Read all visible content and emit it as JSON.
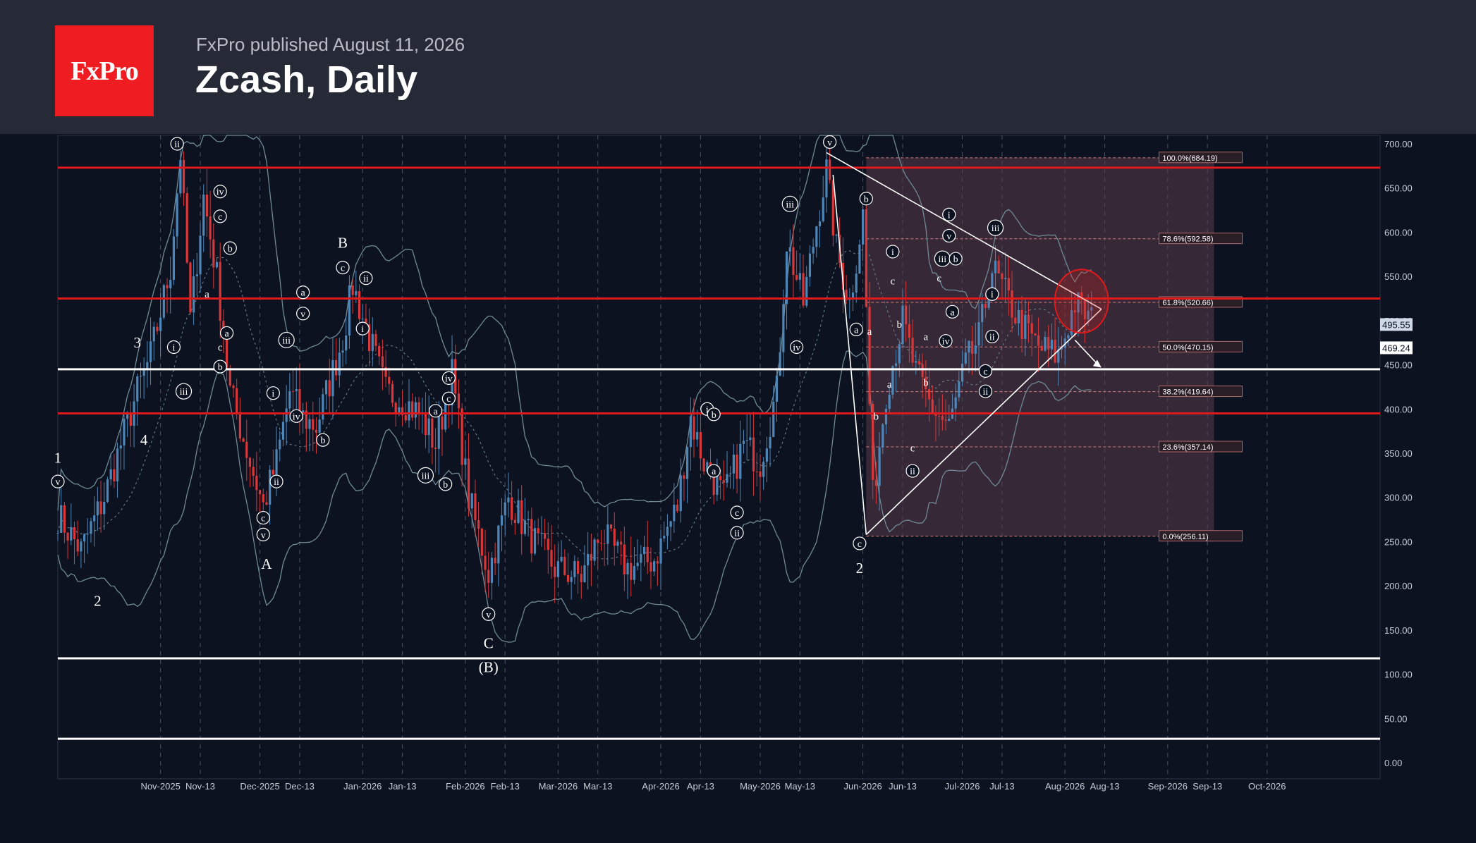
{
  "header": {
    "publisher": "FxPro published August 11, 2026",
    "title": "Zcash, Daily",
    "logo": "FxPro"
  },
  "colors": {
    "background": "#0c1220",
    "header": "#262a36",
    "logo": "#ef1c22",
    "up_candle": "#4f86b8",
    "down_candle": "#d8383a",
    "resistance": "#e0191c",
    "support": "#ffffff",
    "band": "#6f8a94",
    "fib_zone": "#5a3a48"
  },
  "chart_data": {
    "type": "candlestick",
    "ylim": [
      -20,
      720
    ],
    "y_ticks": [
      "0.00",
      "50.00",
      "100.00",
      "150.00",
      "200.00",
      "250.00",
      "300.00",
      "350.00",
      "400.00",
      "450.00",
      "500.00",
      "550.00",
      "600.00",
      "650.00",
      "700.00"
    ],
    "x_ticks": [
      "Nov-2025",
      "Nov-13",
      "Dec-2025",
      "Dec-13",
      "Jan-2026",
      "Jan-13",
      "Feb-2026",
      "Feb-13",
      "Mar-2026",
      "Mar-13",
      "Apr-2026",
      "Apr-13",
      "May-2026",
      "May-13",
      "Jun-2026",
      "Jun-13",
      "Jul-2026",
      "Jul-13",
      "Aug-2026",
      "Aug-13",
      "Sep-2026",
      "Sep-13",
      "Oct-2026"
    ],
    "horizontal_levels": [
      {
        "price": 673,
        "color": "red"
      },
      {
        "price": 525,
        "color": "red"
      },
      {
        "price": 445,
        "color": "white"
      },
      {
        "price": 395,
        "color": "red"
      },
      {
        "price": 118,
        "color": "white"
      },
      {
        "price": 27,
        "color": "white"
      }
    ],
    "fibonacci": [
      {
        "label": "100.0%(684.19)",
        "price": 684.19
      },
      {
        "label": "78.6%(592.58)",
        "price": 592.58
      },
      {
        "label": "61.8%(520.66)",
        "price": 520.66
      },
      {
        "label": "50.0%(470.15)",
        "price": 470.15
      },
      {
        "label": "38.2%(419.64)",
        "price": 419.64
      },
      {
        "label": "23.6%(357.14)",
        "price": 357.14
      },
      {
        "label": "0.0%(256.11)",
        "price": 256.11
      }
    ],
    "price_labels": [
      "495.55",
      "469.24"
    ],
    "close_path": [
      [
        "2025-10-01",
        280
      ],
      [
        "2025-10-08",
        240
      ],
      [
        "2025-10-15",
        300
      ],
      [
        "2025-10-20",
        360
      ],
      [
        "2025-10-25",
        420
      ],
      [
        "2025-10-29",
        460
      ],
      [
        "2025-11-04",
        560
      ],
      [
        "2025-11-07",
        690
      ],
      [
        "2025-11-10",
        500
      ],
      [
        "2025-11-14",
        640
      ],
      [
        "2025-11-18",
        550
      ],
      [
        "2025-11-22",
        420
      ],
      [
        "2025-11-28",
        340
      ],
      [
        "2025-12-02",
        290
      ],
      [
        "2025-12-06",
        340
      ],
      [
        "2025-12-10",
        420
      ],
      [
        "2025-12-14",
        390
      ],
      [
        "2025-12-18",
        380
      ],
      [
        "2025-12-22",
        430
      ],
      [
        "2025-12-26",
        480
      ],
      [
        "2025-12-29",
        540
      ],
      [
        "2026-01-03",
        480
      ],
      [
        "2026-01-08",
        420
      ],
      [
        "2026-01-13",
        410
      ],
      [
        "2026-01-18",
        395
      ],
      [
        "2026-01-23",
        360
      ],
      [
        "2026-01-28",
        440
      ],
      [
        "2026-02-02",
        300
      ],
      [
        "2026-02-08",
        215
      ],
      [
        "2026-02-14",
        300
      ],
      [
        "2026-02-20",
        260
      ],
      [
        "2026-02-28",
        220
      ],
      [
        "2026-03-08",
        210
      ],
      [
        "2026-03-14",
        260
      ],
      [
        "2026-03-22",
        220
      ],
      [
        "2026-03-30",
        230
      ],
      [
        "2026-04-06",
        290
      ],
      [
        "2026-04-10",
        390
      ],
      [
        "2026-04-14",
        340
      ],
      [
        "2026-04-20",
        300
      ],
      [
        "2026-04-26",
        360
      ],
      [
        "2026-05-01",
        340
      ],
      [
        "2026-05-06",
        420
      ],
      [
        "2026-05-09",
        590
      ],
      [
        "2026-05-14",
        520
      ],
      [
        "2026-05-18",
        610
      ],
      [
        "2026-05-21",
        670
      ],
      [
        "2026-05-24",
        580
      ],
      [
        "2026-05-28",
        520
      ],
      [
        "2026-06-01",
        620
      ],
      [
        "2026-06-04",
        300
      ],
      [
        "2026-06-08",
        420
      ],
      [
        "2026-06-13",
        500
      ],
      [
        "2026-06-17",
        440
      ],
      [
        "2026-06-22",
        400
      ],
      [
        "2026-06-27",
        380
      ],
      [
        "2026-07-02",
        450
      ],
      [
        "2026-07-06",
        480
      ],
      [
        "2026-07-10",
        560
      ],
      [
        "2026-07-14",
        530
      ],
      [
        "2026-07-18",
        500
      ],
      [
        "2026-07-24",
        470
      ],
      [
        "2026-07-30",
        460
      ],
      [
        "2026-08-04",
        520
      ],
      [
        "2026-08-09",
        500
      ]
    ],
    "wave_labels": [
      {
        "text": "1",
        "date": "2025-10-01",
        "price": 345
      },
      {
        "text": "v",
        "date": "2025-10-01",
        "price": 318,
        "circle": true
      },
      {
        "text": "2",
        "date": "2025-10-13",
        "price": 183
      },
      {
        "text": "3",
        "date": "2025-10-25",
        "price": 475
      },
      {
        "text": "4",
        "date": "2025-10-27",
        "price": 365
      },
      {
        "text": "ii",
        "date": "2025-11-06",
        "price": 700,
        "circle": true
      },
      {
        "text": "i",
        "date": "2025-11-05",
        "price": 470,
        "circle": true
      },
      {
        "text": "iii",
        "date": "2025-11-08",
        "price": 420,
        "circle": true
      },
      {
        "text": "iv",
        "date": "2025-11-19",
        "price": 646,
        "circle": true
      },
      {
        "text": "c",
        "date": "2025-11-19",
        "price": 618,
        "circle": true
      },
      {
        "text": "a",
        "date": "2025-11-15",
        "price": 530
      },
      {
        "text": "b",
        "date": "2025-11-22",
        "price": 582,
        "circle": true
      },
      {
        "text": "a",
        "date": "2025-11-21",
        "price": 486,
        "circle": true
      },
      {
        "text": "c",
        "date": "2025-11-19",
        "price": 470
      },
      {
        "text": "b",
        "date": "2025-11-19",
        "price": 448,
        "circle": true
      },
      {
        "text": "i",
        "date": "2025-12-05",
        "price": 418,
        "circle": true
      },
      {
        "text": "ii",
        "date": "2025-12-06",
        "price": 318,
        "circle": true
      },
      {
        "text": "c",
        "date": "2025-12-02",
        "price": 277,
        "circle": true
      },
      {
        "text": "v",
        "date": "2025-12-02",
        "price": 258,
        "circle": true
      },
      {
        "text": "A",
        "date": "2025-12-03",
        "price": 225
      },
      {
        "text": "iii",
        "date": "2025-12-09",
        "price": 478,
        "circle": true
      },
      {
        "text": "iv",
        "date": "2025-12-12",
        "price": 392,
        "circle": true
      },
      {
        "text": "a",
        "date": "2025-12-14",
        "price": 532,
        "circle": true
      },
      {
        "text": "v",
        "date": "2025-12-14",
        "price": 508,
        "circle": true
      },
      {
        "text": "b",
        "date": "2025-12-20",
        "price": 365,
        "circle": true
      },
      {
        "text": "B",
        "date": "2025-12-26",
        "price": 588
      },
      {
        "text": "c",
        "date": "2025-12-26",
        "price": 560,
        "circle": true
      },
      {
        "text": "ii",
        "date": "2026-01-02",
        "price": 548,
        "circle": true
      },
      {
        "text": "i",
        "date": "2026-01-01",
        "price": 491,
        "circle": true
      },
      {
        "text": "iv",
        "date": "2026-01-27",
        "price": 435,
        "circle": true
      },
      {
        "text": "c",
        "date": "2026-01-27",
        "price": 412,
        "circle": true
      },
      {
        "text": "a",
        "date": "2026-01-23",
        "price": 398,
        "circle": true
      },
      {
        "text": "iii",
        "date": "2026-01-20",
        "price": 325,
        "circle": true
      },
      {
        "text": "b",
        "date": "2026-01-26",
        "price": 315,
        "circle": true
      },
      {
        "text": "v",
        "date": "2026-02-08",
        "price": 168,
        "circle": true
      },
      {
        "text": "C",
        "date": "2026-02-08",
        "price": 135
      },
      {
        "text": "(B)",
        "date": "2026-02-08",
        "price": 108
      },
      {
        "text": "i",
        "date": "2026-04-15",
        "price": 400,
        "circle": true
      },
      {
        "text": "b",
        "date": "2026-04-17",
        "price": 394,
        "circle": true
      },
      {
        "text": "a",
        "date": "2026-04-17",
        "price": 330,
        "circle": true
      },
      {
        "text": "c",
        "date": "2026-04-24",
        "price": 283,
        "circle": true
      },
      {
        "text": "ii",
        "date": "2026-04-24",
        "price": 260,
        "circle": true
      },
      {
        "text": "iii",
        "date": "2026-05-10",
        "price": 632,
        "circle": true
      },
      {
        "text": "iv",
        "date": "2026-05-12",
        "price": 470,
        "circle": true
      },
      {
        "text": "v",
        "date": "2026-05-22",
        "price": 702,
        "circle": true
      },
      {
        "text": "b",
        "date": "2026-06-02",
        "price": 638,
        "circle": true
      },
      {
        "text": "a",
        "date": "2026-05-30",
        "price": 490,
        "circle": true
      },
      {
        "text": "c",
        "date": "2026-05-31",
        "price": 248,
        "circle": true
      },
      {
        "text": "2",
        "date": "2026-05-31",
        "price": 220
      },
      {
        "text": "a",
        "date": "2026-06-03",
        "price": 488
      },
      {
        "text": "b",
        "date": "2026-06-05",
        "price": 392
      },
      {
        "text": "a",
        "date": "2026-06-09",
        "price": 428
      },
      {
        "text": "i",
        "date": "2026-06-10",
        "price": 578,
        "circle": true
      },
      {
        "text": "c",
        "date": "2026-06-10",
        "price": 545
      },
      {
        "text": "b",
        "date": "2026-06-12",
        "price": 496
      },
      {
        "text": "c",
        "date": "2026-06-16",
        "price": 356
      },
      {
        "text": "ii",
        "date": "2026-06-16",
        "price": 330,
        "circle": true
      },
      {
        "text": "b",
        "date": "2026-06-20",
        "price": 430
      },
      {
        "text": "a",
        "date": "2026-06-20",
        "price": 482
      },
      {
        "text": "c",
        "date": "2026-06-24",
        "price": 548
      },
      {
        "text": "iii",
        "date": "2026-06-25",
        "price": 570,
        "circle": true
      },
      {
        "text": "i",
        "date": "2026-06-27",
        "price": 620,
        "circle": true
      },
      {
        "text": "v",
        "date": "2026-06-27",
        "price": 596,
        "circle": true
      },
      {
        "text": "b",
        "date": "2026-06-29",
        "price": 570,
        "circle": true
      },
      {
        "text": "a",
        "date": "2026-06-28",
        "price": 510,
        "circle": true
      },
      {
        "text": "iv",
        "date": "2026-06-26",
        "price": 477,
        "circle": true
      },
      {
        "text": "c",
        "date": "2026-07-08",
        "price": 443,
        "circle": true
      },
      {
        "text": "ii",
        "date": "2026-07-08",
        "price": 420,
        "circle": true
      },
      {
        "text": "i",
        "date": "2026-07-10",
        "price": 530,
        "circle": true
      },
      {
        "text": "ii",
        "date": "2026-07-10",
        "price": 482,
        "circle": true
      },
      {
        "text": "iii",
        "date": "2026-07-11",
        "price": 605,
        "circle": true
      }
    ]
  }
}
